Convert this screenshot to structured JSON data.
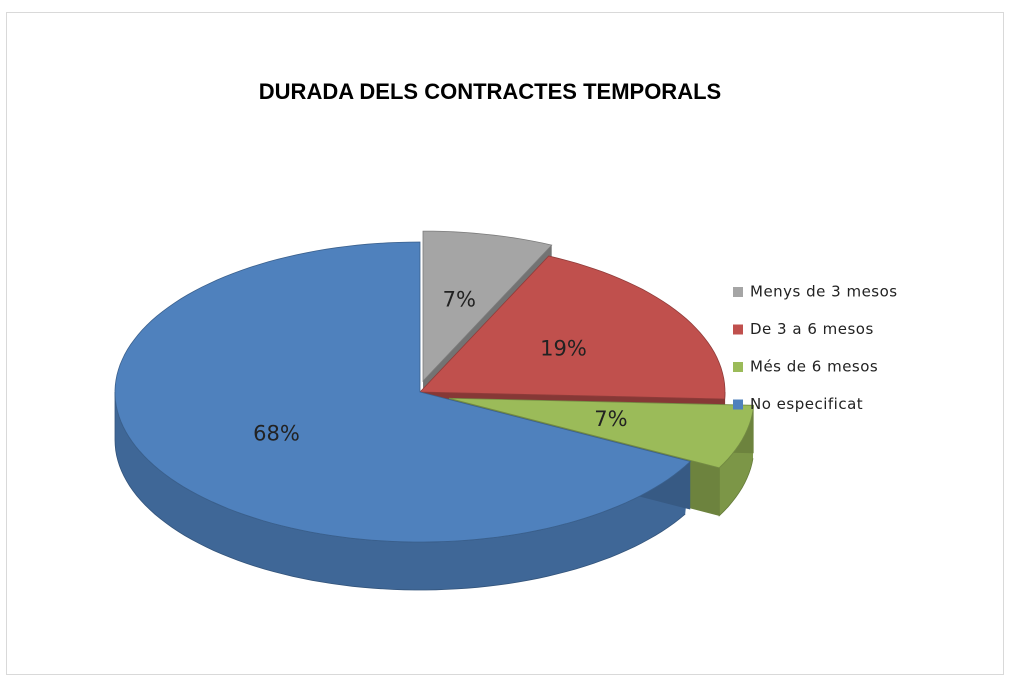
{
  "chart_data": {
    "type": "pie",
    "title": "DURADA DELS CONTRACTES TEMPORALS",
    "categories": [
      "Menys de 3 mesos",
      "De 3 a 6 mesos",
      "Més de 6 mesos",
      "No especificat"
    ],
    "values": [
      7,
      19,
      7,
      68
    ],
    "value_labels": [
      "7%",
      "19%",
      "7%",
      "68%"
    ],
    "colors": [
      "#a5a5a5",
      "#c0504d",
      "#9bbb59",
      "#4f81bd"
    ],
    "legend": "right"
  }
}
